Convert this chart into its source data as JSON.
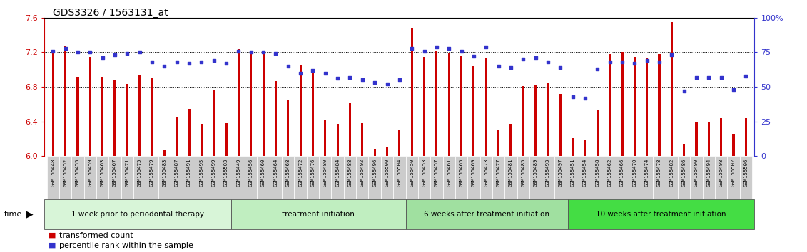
{
  "title": "GDS3326 / 1563131_at",
  "ylim_left": [
    6.0,
    7.6
  ],
  "ylim_right": [
    0,
    100
  ],
  "yticks_left": [
    6.0,
    6.4,
    6.8,
    7.2,
    7.6
  ],
  "yticks_right": [
    0,
    25,
    50,
    75,
    100
  ],
  "ytick_labels_right": [
    "0",
    "25",
    "50",
    "75",
    "100%"
  ],
  "bar_color": "#cc0000",
  "dot_color": "#3333cc",
  "left_axis_color": "#cc0000",
  "right_axis_color": "#3333cc",
  "samples": [
    "GSM155448",
    "GSM155452",
    "GSM155455",
    "GSM155459",
    "GSM155463",
    "GSM155467",
    "GSM155471",
    "GSM155475",
    "GSM155479",
    "GSM155483",
    "GSM155487",
    "GSM155491",
    "GSM155495",
    "GSM155499",
    "GSM155503",
    "GSM155449",
    "GSM155456",
    "GSM155460",
    "GSM155464",
    "GSM155468",
    "GSM155472",
    "GSM155476",
    "GSM155480",
    "GSM155484",
    "GSM155488",
    "GSM155492",
    "GSM155496",
    "GSM155500",
    "GSM155504",
    "GSM155450",
    "GSM155453",
    "GSM155457",
    "GSM155461",
    "GSM155465",
    "GSM155469",
    "GSM155473",
    "GSM155477",
    "GSM155481",
    "GSM155485",
    "GSM155489",
    "GSM155493",
    "GSM155497",
    "GSM155451",
    "GSM155454",
    "GSM155458",
    "GSM155462",
    "GSM155466",
    "GSM155470",
    "GSM155474",
    "GSM155478",
    "GSM155482",
    "GSM155486",
    "GSM155490",
    "GSM155494",
    "GSM155498",
    "GSM155502",
    "GSM155506"
  ],
  "bar_heights": [
    7.23,
    7.27,
    6.92,
    7.15,
    6.92,
    6.88,
    6.83,
    6.93,
    6.9,
    6.07,
    6.46,
    6.55,
    6.37,
    6.77,
    6.38,
    7.24,
    7.2,
    7.2,
    6.87,
    6.65,
    7.05,
    7.01,
    6.42,
    6.37,
    6.62,
    6.38,
    6.08,
    6.1,
    6.31,
    7.48,
    7.15,
    7.21,
    7.19,
    7.16,
    7.04,
    7.13,
    6.3,
    6.37,
    6.81,
    6.82,
    6.85,
    6.72,
    6.21,
    6.19,
    6.53,
    7.18,
    7.2,
    7.15,
    7.13,
    7.18,
    7.55,
    6.14,
    6.4,
    6.4,
    6.44,
    6.26,
    6.44
  ],
  "percentile_ranks": [
    76,
    78,
    75,
    75,
    71,
    73,
    74,
    75,
    68,
    65,
    68,
    67,
    68,
    69,
    67,
    76,
    75,
    75,
    74,
    65,
    60,
    62,
    60,
    56,
    57,
    55,
    53,
    52,
    55,
    78,
    76,
    79,
    78,
    76,
    72,
    79,
    65,
    64,
    70,
    71,
    68,
    64,
    43,
    42,
    63,
    68,
    68,
    67,
    69,
    68,
    73,
    47,
    57,
    57,
    57,
    48,
    58
  ],
  "groups": [
    {
      "label": "1 week prior to periodontal therapy",
      "count": 15,
      "color": "#d8f5d8",
      "border": "#aaddaa"
    },
    {
      "label": "treatment initiation",
      "count": 14,
      "color": "#c0eec0",
      "border": "#aaddaa"
    },
    {
      "label": "6 weeks after treatment initiation",
      "count": 13,
      "color": "#a0e0a0",
      "border": "#aaddaa"
    },
    {
      "label": "10 weeks after treatment initiation",
      "count": 15,
      "color": "#44dd44",
      "border": "#aaddaa"
    }
  ],
  "tick_bg": "#cccccc",
  "plot_bg": "#ffffff"
}
